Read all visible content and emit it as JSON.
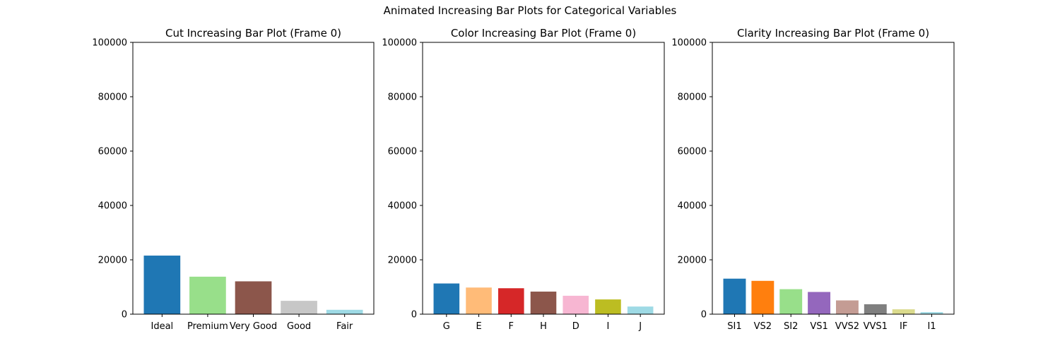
{
  "figure": {
    "suptitle": "Animated Increasing Bar Plots for Categorical Variables"
  },
  "chart_data": [
    {
      "type": "bar",
      "title": "Cut Increasing Bar Plot (Frame 0)",
      "xlabel": "",
      "ylabel": "",
      "ylim": [
        0,
        100000
      ],
      "yticks": [
        0,
        20000,
        40000,
        60000,
        80000,
        100000
      ],
      "grid": false,
      "categories": [
        "Ideal",
        "Premium",
        "Very Good",
        "Good",
        "Fair"
      ],
      "values": [
        21551,
        13791,
        12082,
        4906,
        1610
      ],
      "colors": [
        "#1f77b4",
        "#98df8a",
        "#8c564b",
        "#c7c7c7",
        "#9edae5"
      ]
    },
    {
      "type": "bar",
      "title": "Color Increasing Bar Plot (Frame 0)",
      "xlabel": "",
      "ylabel": "",
      "ylim": [
        0,
        100000
      ],
      "yticks": [
        0,
        20000,
        40000,
        60000,
        80000,
        100000
      ],
      "grid": false,
      "categories": [
        "G",
        "E",
        "F",
        "H",
        "D",
        "I",
        "J"
      ],
      "values": [
        11292,
        9797,
        9542,
        8304,
        6775,
        5422,
        2808
      ],
      "colors": [
        "#1f77b4",
        "#ffbb78",
        "#d62728",
        "#8c564b",
        "#f7b6d2",
        "#bcbd22",
        "#9edae5"
      ]
    },
    {
      "type": "bar",
      "title": "Clarity Increasing Bar Plot (Frame 0)",
      "xlabel": "",
      "ylabel": "",
      "ylim": [
        0,
        100000
      ],
      "yticks": [
        0,
        20000,
        40000,
        60000,
        80000,
        100000
      ],
      "grid": false,
      "categories": [
        "SI1",
        "VS2",
        "SI2",
        "VS1",
        "VVS2",
        "VVS1",
        "IF",
        "I1"
      ],
      "values": [
        13065,
        12258,
        9194,
        8171,
        5066,
        3655,
        1790,
        741
      ],
      "colors": [
        "#1f77b4",
        "#ff7f0e",
        "#98df8a",
        "#9467bd",
        "#c49c94",
        "#7f7f7f",
        "#dbdb8d",
        "#9edae5"
      ]
    }
  ]
}
